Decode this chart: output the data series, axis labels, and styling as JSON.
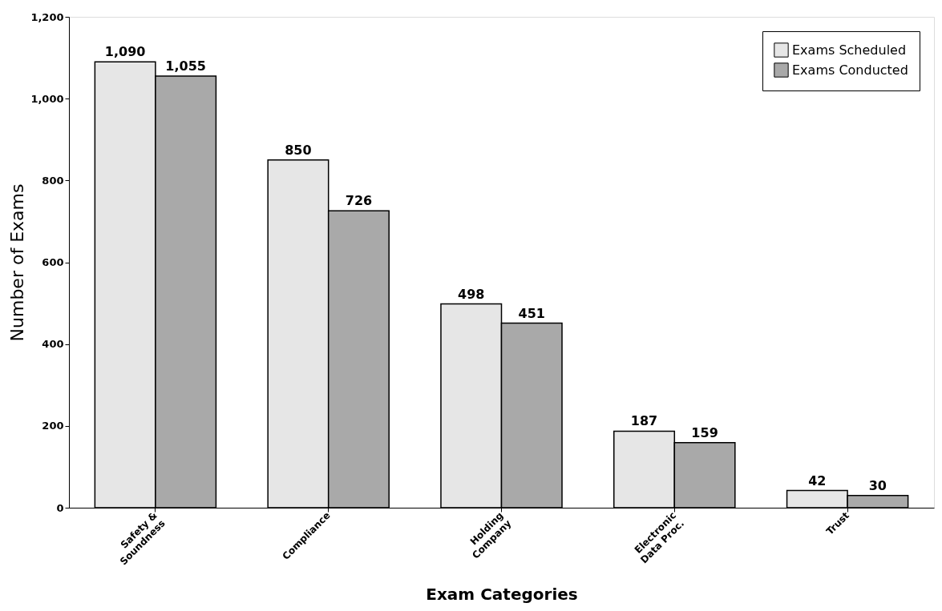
{
  "chart_data": {
    "type": "bar",
    "xlabel": "Exam Categories",
    "ylabel": "Number of Exams",
    "categories": [
      "Safety &\nSoundness",
      "Compliance",
      "Holding\nCompany",
      "Electronic\nData Proc.",
      "Trust"
    ],
    "series": [
      {
        "name": "Exams Scheduled",
        "color": "#e6e6e6",
        "values": [
          1090,
          850,
          498,
          187,
          42
        ],
        "value_labels": [
          "1,090",
          "850",
          "498",
          "187",
          "42"
        ]
      },
      {
        "name": "Exams Conducted",
        "color": "#a9a9a9",
        "values": [
          1055,
          726,
          451,
          159,
          30
        ],
        "value_labels": [
          "1,055",
          "726",
          "451",
          "159",
          "30"
        ]
      }
    ],
    "ylim": [
      0,
      1200
    ],
    "yticks": [
      0,
      200,
      400,
      600,
      800,
      {
        "value": 1000,
        "label": "1,000"
      },
      {
        "value": 1200,
        "label": "1,200"
      }
    ],
    "grid": false,
    "legend": "top right"
  }
}
